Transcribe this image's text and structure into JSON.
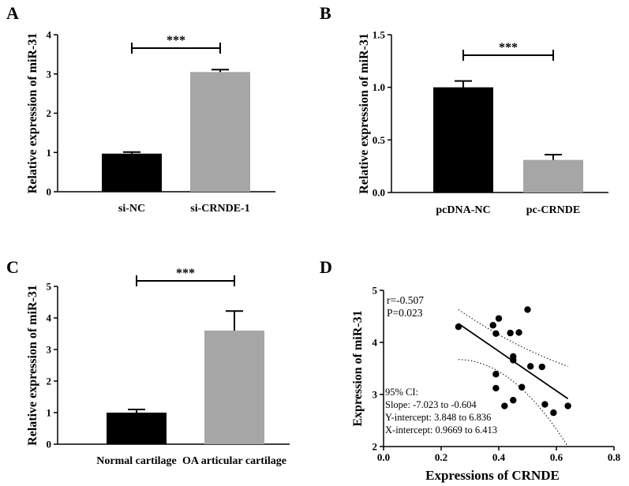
{
  "chart_data": [
    {
      "panel": "A",
      "type": "bar",
      "categories": [
        "si-NC",
        "si-CRNDE-1"
      ],
      "values": [
        0.97,
        3.05
      ],
      "errors": [
        0.04,
        0.06
      ],
      "colors": [
        "#000000",
        "#a6a6a6"
      ],
      "ylabel": "Relative expression of miR-31",
      "ylim": [
        0,
        4
      ],
      "yticks": [
        "0",
        "1",
        "2",
        "3",
        "4"
      ],
      "significance": "***"
    },
    {
      "panel": "B",
      "type": "bar",
      "categories": [
        "pcDNA-NC",
        "pc-CRNDE"
      ],
      "values": [
        1.0,
        0.31
      ],
      "errors": [
        0.06,
        0.05
      ],
      "colors": [
        "#000000",
        "#a6a6a6"
      ],
      "ylabel": "Relative expression of miR-31",
      "ylim": [
        0,
        1.5
      ],
      "yticks": [
        "0.0",
        "0.5",
        "1.0",
        "1.5"
      ],
      "significance": "***"
    },
    {
      "panel": "C",
      "type": "bar",
      "categories": [
        "Normal cartilage",
        "OA articular cartilage"
      ],
      "values": [
        1.0,
        3.6
      ],
      "errors": [
        0.1,
        0.62
      ],
      "colors": [
        "#000000",
        "#a6a6a6"
      ],
      "ylabel": "Relative expression of miR-31",
      "ylim": [
        0,
        5
      ],
      "yticks": [
        "0",
        "1",
        "2",
        "3",
        "4",
        "5"
      ],
      "significance": "***"
    },
    {
      "panel": "D",
      "type": "scatter",
      "xlabel": "Expressions of CRNDE",
      "ylabel": "Expression of miR-31",
      "xlim": [
        0,
        0.8
      ],
      "ylim": [
        2,
        5
      ],
      "xticks": [
        "0.0",
        "0.2",
        "0.4",
        "0.6",
        "0.8"
      ],
      "yticks": [
        "2",
        "3",
        "4",
        "5"
      ],
      "points": [
        [
          0.26,
          4.3
        ],
        [
          0.38,
          4.33
        ],
        [
          0.39,
          4.17
        ],
        [
          0.4,
          4.46
        ],
        [
          0.44,
          4.18
        ],
        [
          0.47,
          4.19
        ],
        [
          0.5,
          4.63
        ],
        [
          0.45,
          3.73
        ],
        [
          0.45,
          3.66
        ],
        [
          0.51,
          3.54
        ],
        [
          0.55,
          3.53
        ],
        [
          0.39,
          3.39
        ],
        [
          0.39,
          3.12
        ],
        [
          0.48,
          3.14
        ],
        [
          0.42,
          2.78
        ],
        [
          0.45,
          2.89
        ],
        [
          0.56,
          2.81
        ],
        [
          0.59,
          2.65
        ],
        [
          0.64,
          2.78
        ]
      ],
      "regression": {
        "slope": -3.8,
        "intercept": 5.35,
        "x_range": [
          0.26,
          0.64
        ]
      },
      "ci_band": {
        "upper": [
          [
            0.26,
            4.63
          ],
          [
            0.45,
            4.0
          ],
          [
            0.64,
            3.54
          ]
        ],
        "lower": [
          [
            0.26,
            3.67
          ],
          [
            0.45,
            3.25
          ],
          [
            0.64,
            2.0
          ]
        ]
      },
      "stats": {
        "r": "r=-0.507",
        "p": "P=0.023"
      },
      "ci_text": [
        "95% CI:",
        "Slope: -7.023 to -0.604",
        "Y-intercept: 3.848 to 6.836",
        "X-intercept: 0.9669 to 6.413"
      ]
    }
  ]
}
